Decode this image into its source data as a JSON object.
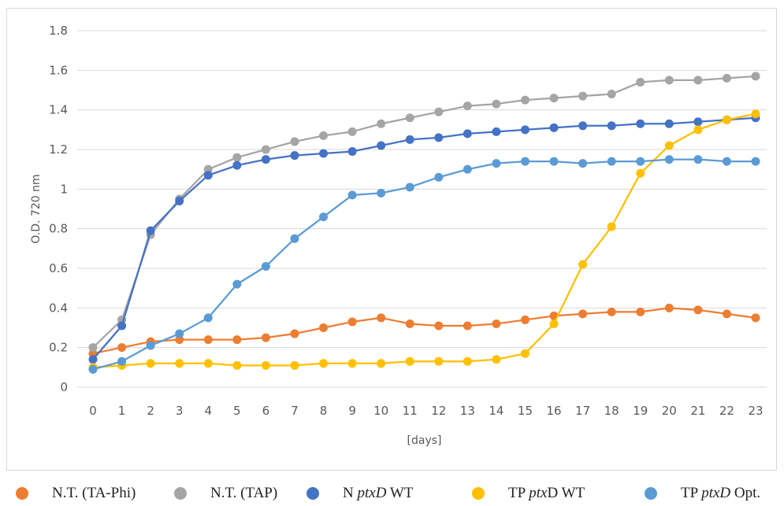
{
  "chart_data": {
    "type": "line",
    "title": "",
    "xlabel": "[days]",
    "ylabel": "O.D. 720 nm",
    "ylim": [
      0,
      1.8
    ],
    "yticks": [
      "0",
      "0.2",
      "0.4",
      "0.6",
      "0.8",
      "1",
      "1.2",
      "1.4",
      "1.6",
      "1.8"
    ],
    "x": [
      0,
      1,
      2,
      3,
      4,
      5,
      6,
      7,
      8,
      9,
      10,
      11,
      12,
      13,
      14,
      15,
      16,
      17,
      18,
      19,
      20,
      21,
      22,
      23
    ],
    "grid": true,
    "legend_position": "bottom",
    "series": [
      {
        "name": "N.T. (TA-Phi)",
        "name_parts": [
          {
            "t": "N.T. (TA-Phi)",
            "i": false
          }
        ],
        "color": "#ED7D31",
        "values": [
          0.17,
          0.2,
          0.23,
          0.24,
          0.24,
          0.24,
          0.25,
          0.27,
          0.3,
          0.33,
          0.35,
          0.32,
          0.31,
          0.31,
          0.32,
          0.34,
          0.36,
          0.37,
          0.38,
          0.38,
          0.4,
          0.39,
          0.37,
          0.35
        ]
      },
      {
        "name": "N.T. (TAP)",
        "name_parts": [
          {
            "t": "N.T. (TAP)",
            "i": false
          }
        ],
        "color": "#A5A5A5",
        "values": [
          0.2,
          0.34,
          0.77,
          0.95,
          1.1,
          1.16,
          1.2,
          1.24,
          1.27,
          1.29,
          1.33,
          1.36,
          1.39,
          1.42,
          1.43,
          1.45,
          1.46,
          1.47,
          1.48,
          1.54,
          1.55,
          1.55,
          1.56,
          1.57
        ]
      },
      {
        "name": "N ptxD WT",
        "name_parts": [
          {
            "t": "N ",
            "i": false
          },
          {
            "t": "ptxD",
            "i": true
          },
          {
            "t": " WT",
            "i": false
          }
        ],
        "color": "#4472C4",
        "values": [
          0.14,
          0.31,
          0.79,
          0.94,
          1.07,
          1.12,
          1.15,
          1.17,
          1.18,
          1.19,
          1.22,
          1.25,
          1.26,
          1.28,
          1.29,
          1.3,
          1.31,
          1.32,
          1.32,
          1.33,
          1.33,
          1.34,
          1.35,
          1.36
        ]
      },
      {
        "name": "TP ptxD WT",
        "name_parts": [
          {
            "t": "TP ",
            "i": false
          },
          {
            "t": "ptx",
            "i": true
          },
          {
            "t": "D WT",
            "i": false
          }
        ],
        "color": "#FFC000",
        "values": [
          0.1,
          0.11,
          0.12,
          0.12,
          0.12,
          0.11,
          0.11,
          0.11,
          0.12,
          0.12,
          0.12,
          0.13,
          0.13,
          0.13,
          0.14,
          0.17,
          0.32,
          0.62,
          0.81,
          1.08,
          1.22,
          1.3,
          1.35,
          1.38
        ]
      },
      {
        "name": "TP ptxD Opt.",
        "name_parts": [
          {
            "t": "TP ",
            "i": false
          },
          {
            "t": "ptxD",
            "i": true
          },
          {
            "t": " Opt.",
            "i": false
          }
        ],
        "color": "#5B9BD5",
        "values": [
          0.09,
          0.13,
          0.21,
          0.27,
          0.35,
          0.52,
          0.61,
          0.75,
          0.86,
          0.97,
          0.98,
          1.01,
          1.06,
          1.1,
          1.13,
          1.14,
          1.14,
          1.13,
          1.14,
          1.14,
          1.15,
          1.15,
          1.14,
          1.14
        ]
      }
    ]
  }
}
